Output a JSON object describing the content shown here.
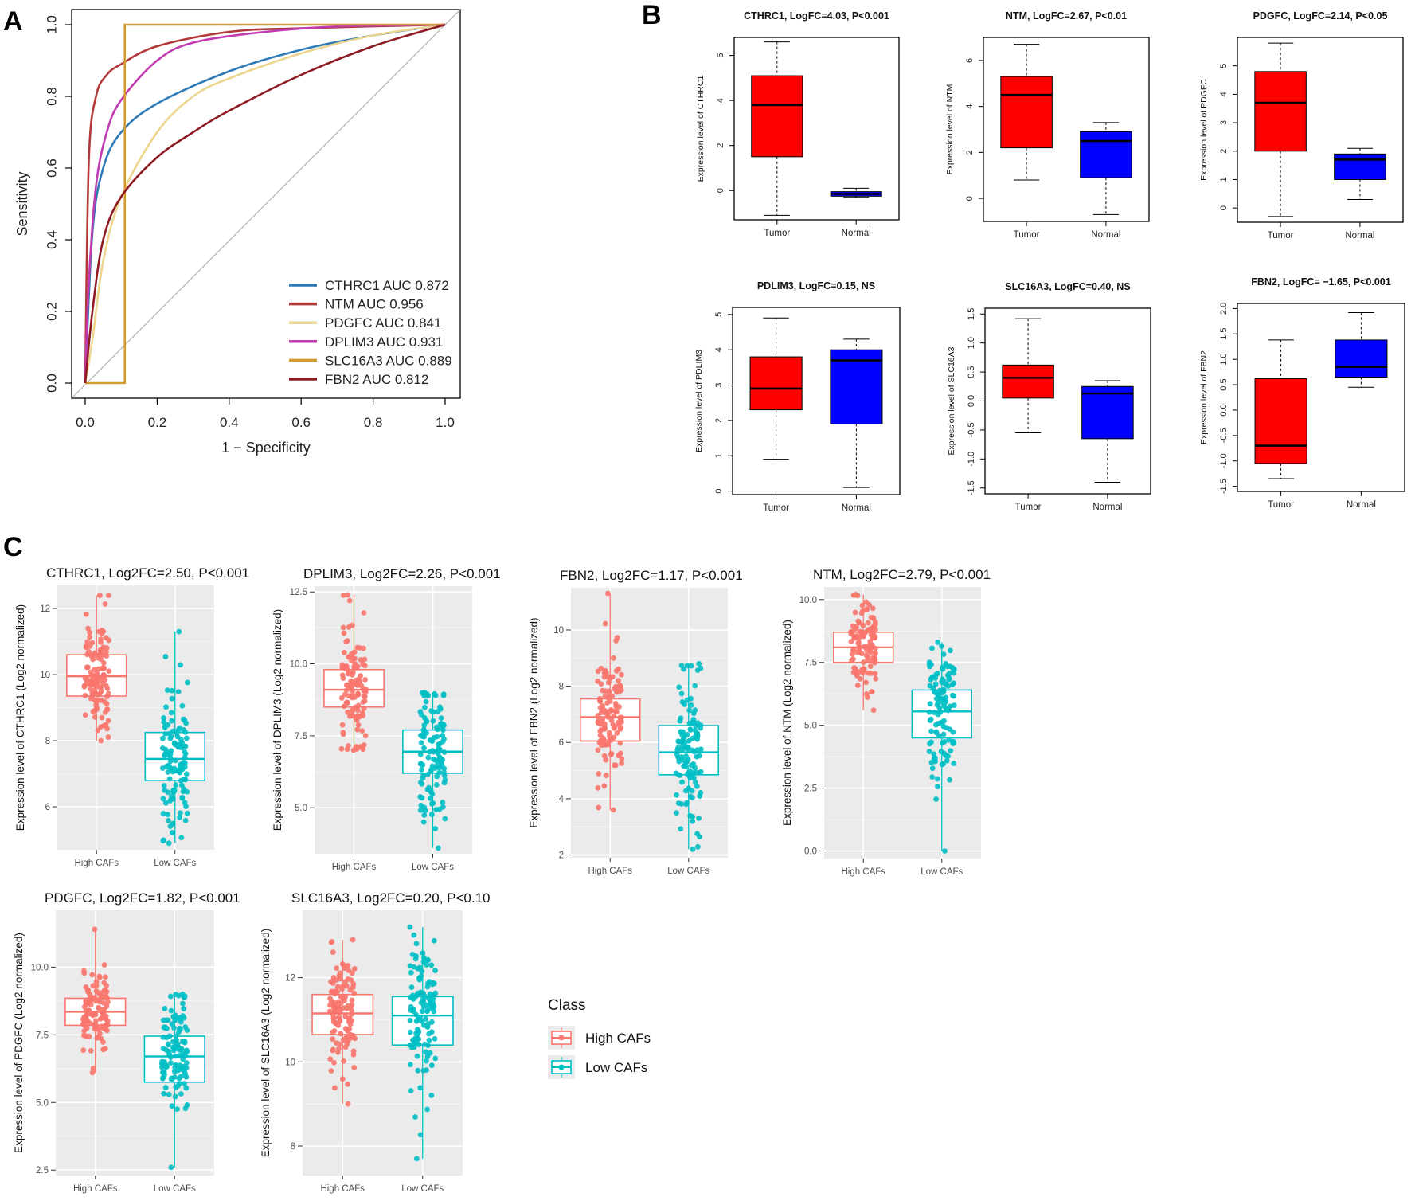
{
  "panel_labels": [
    "A",
    "B",
    "C"
  ],
  "chart_data": [
    {
      "panel": "A",
      "type": "line",
      "xlabel": "1 − Specificity",
      "ylabel": "Sensitivity",
      "xlim": [
        0,
        1
      ],
      "ylim": [
        0,
        1
      ],
      "xticks": [
        "0.0",
        "0.2",
        "0.4",
        "0.6",
        "0.8",
        "1.0"
      ],
      "yticks": [
        "0.0",
        "0.2",
        "0.4",
        "0.6",
        "0.8",
        "1.0"
      ],
      "legend_position": "bottom-right",
      "diagonal_reference": true,
      "series": [
        {
          "name": "CTHRC1",
          "legend": "CTHRC1 AUC 0.872",
          "auc": 0.872,
          "color": "#2e7ab6",
          "x": [
            0,
            0.02,
            0.05,
            0.1,
            0.2,
            0.4,
            0.6,
            0.8,
            1.0
          ],
          "y": [
            0,
            0.42,
            0.6,
            0.7,
            0.78,
            0.87,
            0.93,
            0.97,
            1.0
          ]
        },
        {
          "name": "NTM",
          "legend": "NTM AUC 0.956",
          "auc": 0.956,
          "color": "#b2383a",
          "x": [
            0,
            0.01,
            0.03,
            0.06,
            0.1,
            0.2,
            0.4,
            0.6,
            1.0
          ],
          "y": [
            0,
            0.62,
            0.8,
            0.86,
            0.89,
            0.94,
            0.98,
            0.99,
            1.0
          ]
        },
        {
          "name": "PDGFC",
          "legend": "PDGFC AUC 0.841",
          "auc": 0.841,
          "color": "#ecd58e",
          "x": [
            0,
            0.02,
            0.05,
            0.1,
            0.2,
            0.3,
            0.4,
            0.6,
            0.8,
            1.0
          ],
          "y": [
            0,
            0.12,
            0.34,
            0.52,
            0.7,
            0.8,
            0.85,
            0.92,
            0.97,
            1.0
          ]
        },
        {
          "name": "DPLIM3",
          "legend": "DPLIM3 AUC 0.931",
          "auc": 0.931,
          "color": "#c13ab0",
          "x": [
            0,
            0.01,
            0.03,
            0.06,
            0.1,
            0.2,
            0.3,
            0.5,
            0.7,
            1.0
          ],
          "y": [
            0,
            0.28,
            0.55,
            0.7,
            0.79,
            0.9,
            0.95,
            0.98,
            0.995,
            1.0
          ]
        },
        {
          "name": "SLC16A3",
          "legend": "SLC16A3 AUC 0.889",
          "auc": 0.889,
          "color": "#d39a2e",
          "x": [
            0,
            0.11,
            0.11,
            1.0
          ],
          "y": [
            0,
            0,
            1.0,
            1.0
          ]
        },
        {
          "name": "FBN2",
          "legend": "FBN2 AUC 0.812",
          "auc": 0.812,
          "color": "#8e1a22",
          "x": [
            0,
            0.02,
            0.05,
            0.1,
            0.2,
            0.3,
            0.4,
            0.6,
            0.8,
            1.0
          ],
          "y": [
            0,
            0.2,
            0.4,
            0.52,
            0.63,
            0.7,
            0.76,
            0.86,
            0.94,
            1.0
          ]
        }
      ]
    },
    {
      "panel": "B",
      "type": "box",
      "title": "CTHRC1, LogFC=4.03, P<0.001",
      "ylabel": "Expression level of CTHRC1",
      "categories": [
        "Tumor",
        "Normal"
      ],
      "ylim": [
        -1.3,
        6.8
      ],
      "yticks": [
        0,
        2,
        4,
        6
      ],
      "boxes": [
        {
          "min": -1.1,
          "q1": 1.5,
          "median": 3.8,
          "q3": 5.1,
          "max": 6.6,
          "color": "#ff0000"
        },
        {
          "min": -0.3,
          "q1": -0.25,
          "median": -0.15,
          "q3": -0.05,
          "max": 0.1,
          "color": "#0000ff"
        }
      ]
    },
    {
      "panel": "B",
      "type": "box",
      "title": "NTM, LogFC=2.67, P<0.01",
      "ylabel": "Expression level of NTM",
      "categories": [
        "Tumor",
        "Normal"
      ],
      "ylim": [
        -1.0,
        7.0
      ],
      "yticks": [
        0,
        2,
        4,
        6
      ],
      "boxes": [
        {
          "min": 0.8,
          "q1": 2.2,
          "median": 4.5,
          "q3": 5.3,
          "max": 6.7,
          "color": "#ff0000"
        },
        {
          "min": -0.7,
          "q1": 0.9,
          "median": 2.5,
          "q3": 2.9,
          "max": 3.3,
          "color": "#0000ff"
        }
      ]
    },
    {
      "panel": "B",
      "type": "box",
      "title": "PDGFC, LogFC=2.14, P<0.05",
      "ylabel": "Expression level of PDGFC",
      "categories": [
        "Tumor",
        "Normal"
      ],
      "ylim": [
        -0.5,
        6.0
      ],
      "yticks": [
        0,
        1,
        2,
        3,
        4,
        5
      ],
      "boxes": [
        {
          "min": -0.3,
          "q1": 2.0,
          "median": 3.7,
          "q3": 4.8,
          "max": 5.8,
          "color": "#ff0000"
        },
        {
          "min": 0.3,
          "q1": 1.0,
          "median": 1.7,
          "q3": 1.9,
          "max": 2.1,
          "color": "#0000ff"
        }
      ]
    },
    {
      "panel": "B",
      "type": "box",
      "title": "PDLIM3, LogFC=0.15, NS",
      "ylabel": "Expression level of PDLIM3",
      "categories": [
        "Tumor",
        "Normal"
      ],
      "ylim": [
        -0.1,
        5.2
      ],
      "yticks": [
        0,
        1,
        2,
        3,
        4,
        5
      ],
      "boxes": [
        {
          "min": 0.9,
          "q1": 2.3,
          "median": 2.9,
          "q3": 3.8,
          "max": 4.9,
          "color": "#ff0000"
        },
        {
          "min": 0.1,
          "q1": 1.9,
          "median": 3.7,
          "q3": 4.0,
          "max": 4.3,
          "color": "#0000ff"
        }
      ]
    },
    {
      "panel": "B",
      "type": "box",
      "title": "SLC16A3, LogFC=0.40, NS",
      "ylabel": "Expression level of SLC16A3",
      "categories": [
        "Tumor",
        "Normal"
      ],
      "ylim": [
        -1.6,
        1.6
      ],
      "yticks": [
        "-1.5",
        "-1.0",
        "-0.5",
        "0.0",
        "0.5",
        "1.0",
        "1.5"
      ],
      "ytick_values": [
        -1.5,
        -1.0,
        -0.5,
        0.0,
        0.5,
        1.0,
        1.5
      ],
      "boxes": [
        {
          "min": -0.55,
          "q1": 0.05,
          "median": 0.4,
          "q3": 0.62,
          "max": 1.42,
          "color": "#ff0000"
        },
        {
          "min": -1.4,
          "q1": -0.65,
          "median": 0.13,
          "q3": 0.25,
          "max": 0.35,
          "color": "#0000ff"
        }
      ]
    },
    {
      "panel": "B",
      "type": "box",
      "title": "FBN2, LogFC= −1.65, P<0.001",
      "ylabel": "Expression level of FBN2",
      "categories": [
        "Tumor",
        "Normal"
      ],
      "ylim": [
        -1.6,
        2.1
      ],
      "yticks": [
        "-1.5",
        "-1.0",
        "-0.5",
        "0.0",
        "0.5",
        "1.0",
        "1.5",
        "2.0"
      ],
      "ytick_values": [
        -1.5,
        -1.0,
        -0.5,
        0.0,
        0.5,
        1.0,
        1.5,
        2.0
      ],
      "boxes": [
        {
          "min": -1.35,
          "q1": -1.05,
          "median": -0.7,
          "q3": 0.62,
          "max": 1.38,
          "color": "#ff0000"
        },
        {
          "min": 0.45,
          "q1": 0.65,
          "median": 0.85,
          "q3": 1.38,
          "max": 1.92,
          "color": "#0000ff"
        }
      ]
    },
    {
      "panel": "C",
      "type": "box",
      "title": "CTHRC1, Log2FC=2.50, P<0.001",
      "ylabel": "Expression level of CTHRC1 (Log2 normalized)",
      "categories": [
        "High CAFs",
        "Low CAFs"
      ],
      "ylim": [
        4.7,
        12.7
      ],
      "yticks": [
        "6",
        "8",
        "10",
        "12"
      ],
      "ytick_values": [
        6,
        8,
        10,
        12
      ],
      "boxes": [
        {
          "min": 8.0,
          "q1": 9.35,
          "median": 9.95,
          "q3": 10.6,
          "max": 12.4
        },
        {
          "min": 4.9,
          "q1": 6.8,
          "median": 7.45,
          "q3": 8.25,
          "max": 11.3
        }
      ]
    },
    {
      "panel": "C",
      "type": "box",
      "title": "DPLIM3, Log2FC=2.26, P<0.001",
      "ylabel": "Expression level of DPLIM3 (Log2 normalized)",
      "categories": [
        "High CAFs",
        "Low CAFs"
      ],
      "ylim": [
        3.4,
        12.7
      ],
      "yticks": [
        "5.0",
        "7.5",
        "10.0",
        "12.5"
      ],
      "ytick_values": [
        5.0,
        7.5,
        10.0,
        12.5
      ],
      "boxes": [
        {
          "min": 7.0,
          "q1": 8.5,
          "median": 9.1,
          "q3": 9.8,
          "max": 12.4
        },
        {
          "min": 3.6,
          "q1": 6.2,
          "median": 6.95,
          "q3": 7.7,
          "max": 9.0
        }
      ]
    },
    {
      "panel": "C",
      "type": "box",
      "title": "FBN2, Log2FC=1.17, P<0.001",
      "ylabel": "Expression level of FBN2 (Log2 normalized)",
      "categories": [
        "High CAFs",
        "Low CAFs"
      ],
      "ylim": [
        1.9,
        11.5
      ],
      "yticks": [
        "2",
        "4",
        "6",
        "8",
        "10"
      ],
      "ytick_values": [
        2,
        4,
        6,
        8,
        10
      ],
      "boxes": [
        {
          "min": 3.6,
          "q1": 6.05,
          "median": 6.9,
          "q3": 7.55,
          "max": 11.3
        },
        {
          "min": 2.2,
          "q1": 4.85,
          "median": 5.65,
          "q3": 6.6,
          "max": 8.8
        }
      ]
    },
    {
      "panel": "C",
      "type": "box",
      "title": "NTM, Log2FC=2.79, P<0.001",
      "ylabel": "Expression level of NTM (Log2 normalized)",
      "categories": [
        "High CAFs",
        "Low CAFs"
      ],
      "ylim": [
        -0.3,
        10.5
      ],
      "yticks": [
        "0.0",
        "2.5",
        "5.0",
        "7.5",
        "10.0"
      ],
      "ytick_values": [
        0,
        2.5,
        5.0,
        7.5,
        10.0
      ],
      "boxes": [
        {
          "min": 5.6,
          "q1": 7.5,
          "median": 8.1,
          "q3": 8.7,
          "max": 10.2
        },
        {
          "min": 0.0,
          "q1": 4.5,
          "median": 5.55,
          "q3": 6.4,
          "max": 8.3
        }
      ]
    },
    {
      "panel": "C",
      "type": "box",
      "title": "PDGFC, Log2FC=1.82, P<0.001",
      "ylabel": "Expression level of PDGFC (Log2 normalized)",
      "categories": [
        "High CAFs",
        "Low CAFs"
      ],
      "ylim": [
        2.3,
        12.1
      ],
      "yticks": [
        "2.5",
        "5.0",
        "7.5",
        "10.0"
      ],
      "ytick_values": [
        2.5,
        5.0,
        7.5,
        10.0
      ],
      "boxes": [
        {
          "min": 6.1,
          "q1": 7.85,
          "median": 8.35,
          "q3": 8.85,
          "max": 11.4
        },
        {
          "min": 2.6,
          "q1": 5.75,
          "median": 6.7,
          "q3": 7.45,
          "max": 9.0
        }
      ]
    },
    {
      "panel": "C",
      "type": "box",
      "title": "SLC16A3, Log2FC=0.20, P<0.10",
      "ylabel": "Expression level of SLC16A3 (Log2 normalized)",
      "categories": [
        "High CAFs",
        "Low CAFs"
      ],
      "ylim": [
        7.3,
        13.6
      ],
      "yticks": [
        "8",
        "10",
        "12"
      ],
      "ytick_values": [
        8,
        10,
        12
      ],
      "boxes": [
        {
          "min": 9.0,
          "q1": 10.65,
          "median": 11.15,
          "q3": 11.6,
          "max": 12.9
        },
        {
          "min": 7.7,
          "q1": 10.4,
          "median": 11.1,
          "q3": 11.55,
          "max": 13.2
        }
      ]
    }
  ],
  "legend_c": {
    "title": "Class",
    "items": [
      {
        "label": "High CAFs",
        "color": "#f8766d"
      },
      {
        "label": "Low CAFs",
        "color": "#00bfc4"
      }
    ]
  }
}
